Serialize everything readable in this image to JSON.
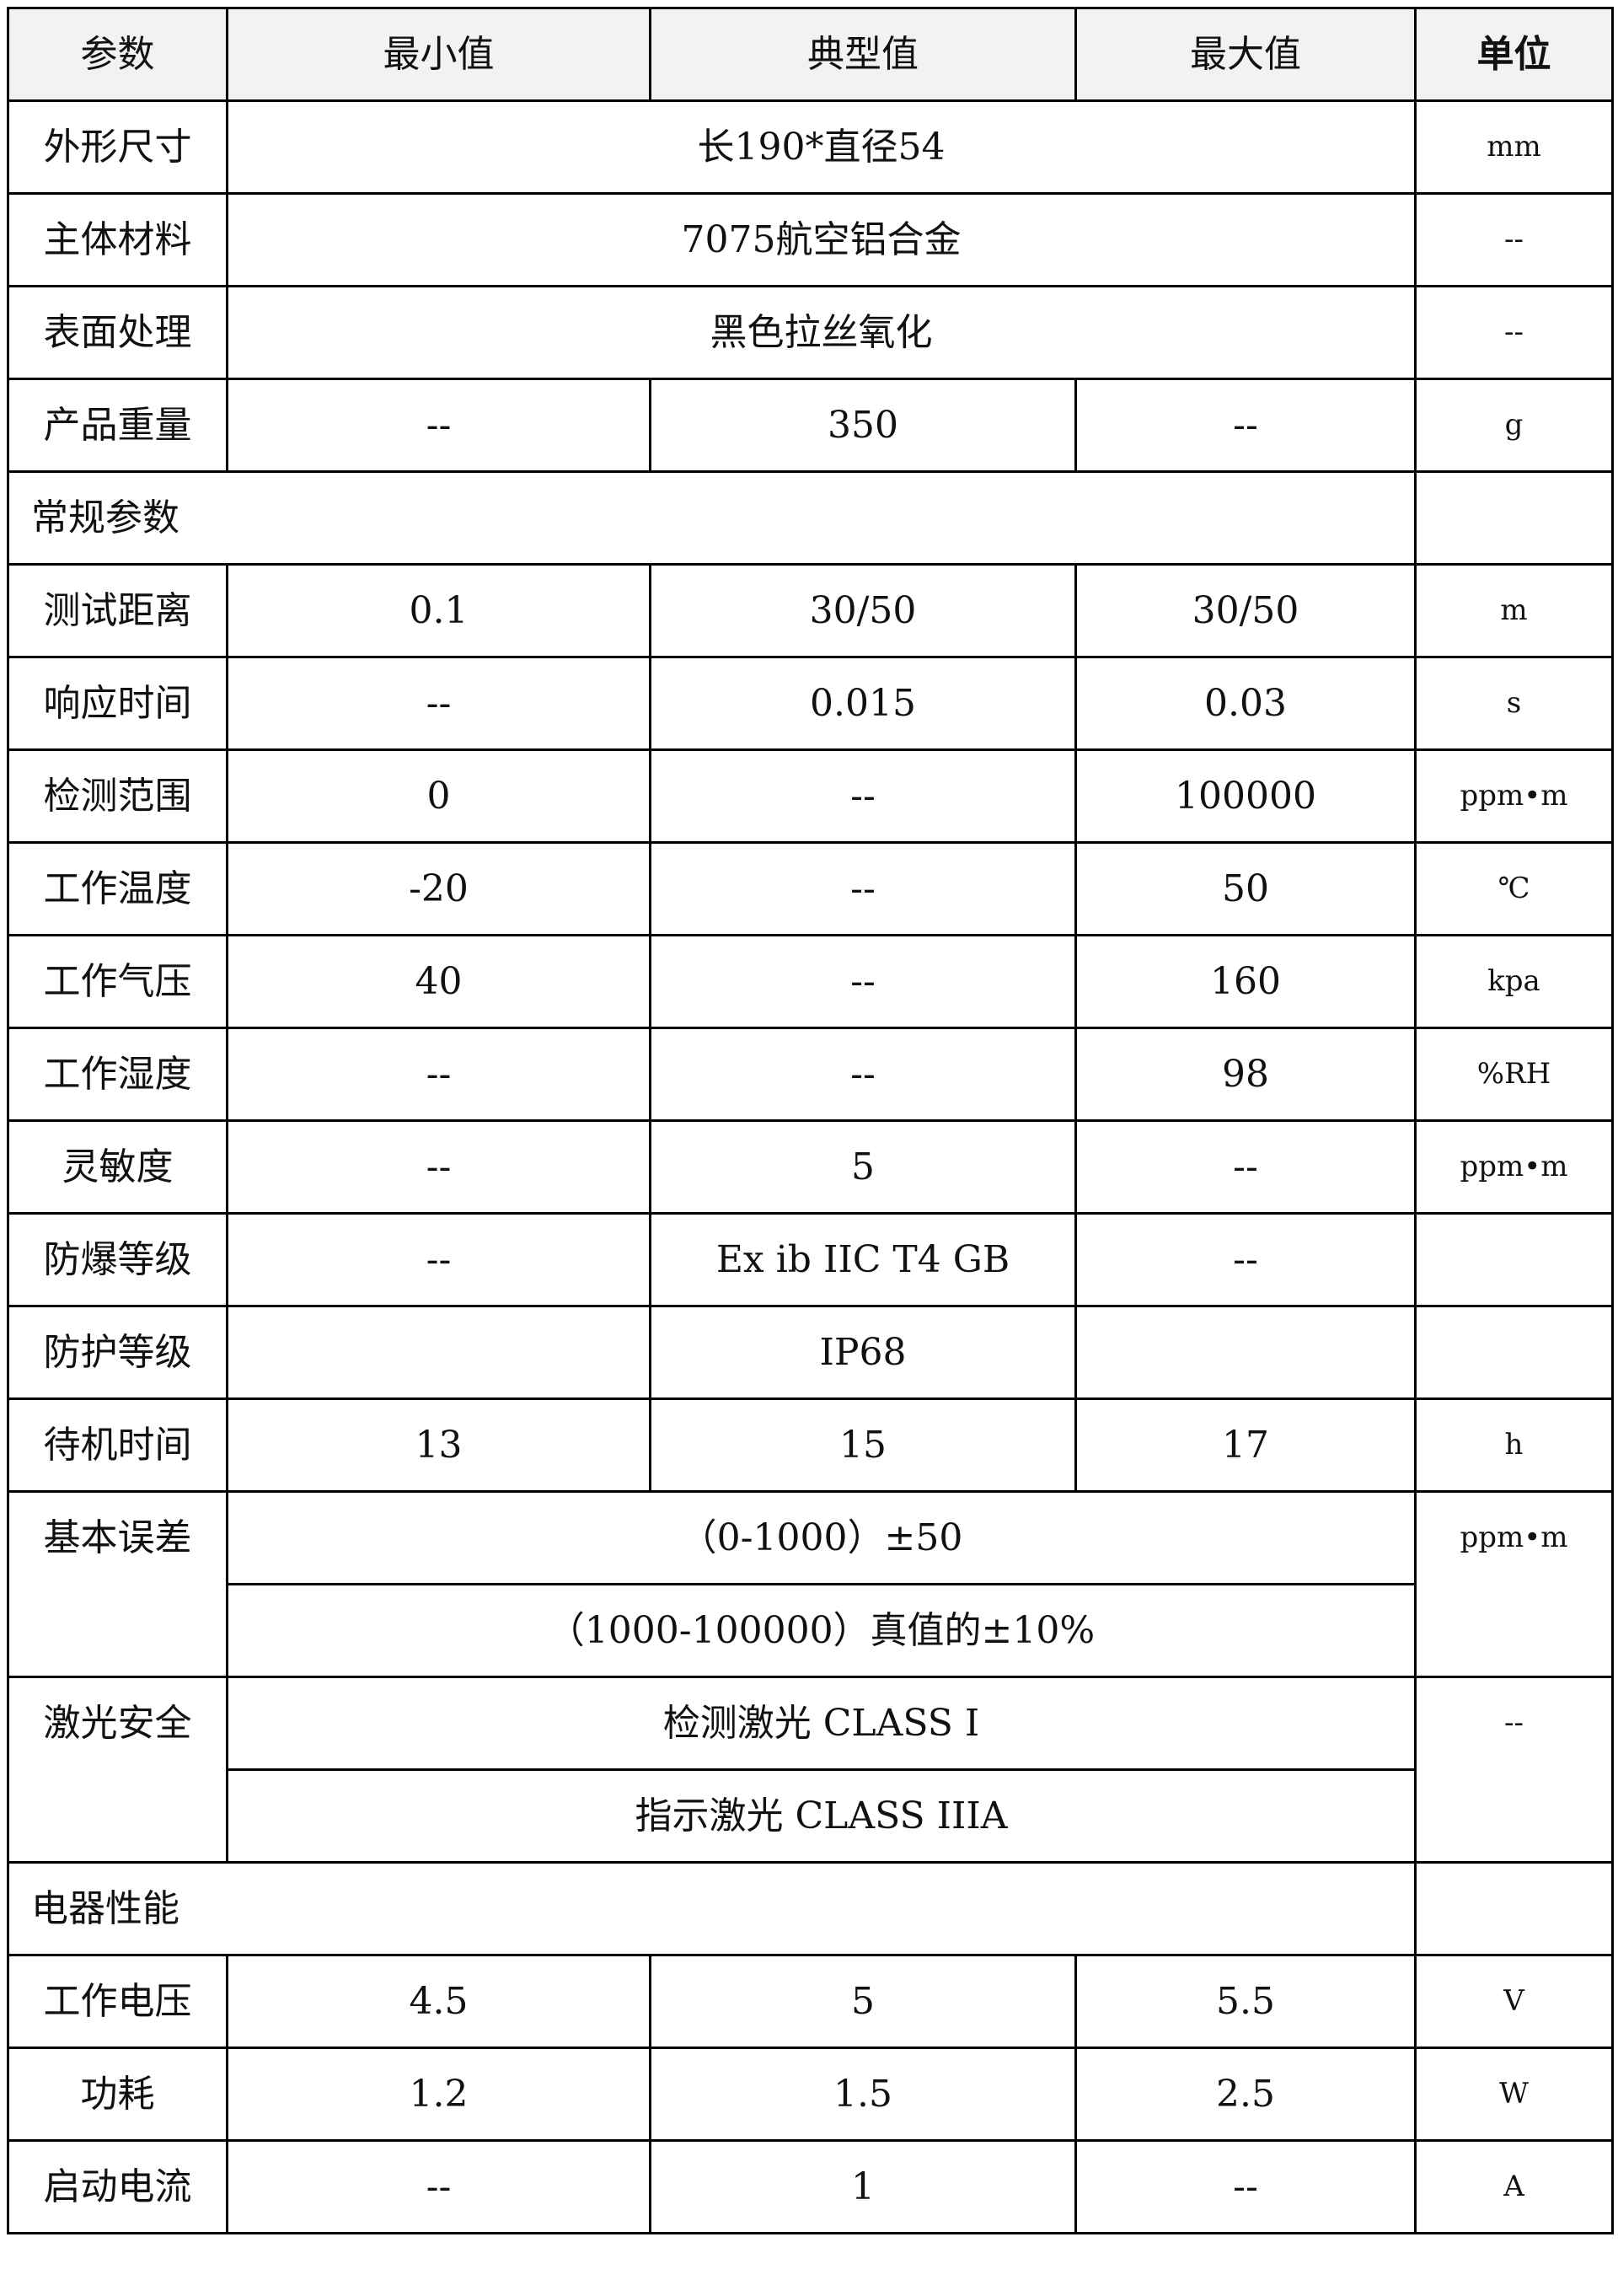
{
  "table": {
    "header": [
      "参数",
      "最小值",
      "典型值",
      "最大值",
      "单位"
    ],
    "rows": [
      [
        "外形尺寸",
        "长190*直径54",
        "mm"
      ],
      [
        "主体材料",
        "7075航空铝合金",
        "--"
      ],
      [
        "表面处理",
        "黑色拉丝氧化",
        "--"
      ],
      [
        "产品重量",
        "--",
        "350",
        "--",
        "g"
      ],
      [
        "常规参数"
      ],
      [
        "测试距离",
        "0.1",
        "30/50",
        "30/50",
        "m"
      ],
      [
        "响应时间",
        "--",
        "0.015",
        "0.03",
        "s"
      ],
      [
        "检测范围",
        "0",
        "--",
        "100000",
        "ppm•m"
      ],
      [
        "工作温度",
        "-20",
        "--",
        "50",
        "℃"
      ],
      [
        "工作气压",
        "40",
        "--",
        "160",
        "kpa"
      ],
      [
        "工作湿度",
        "--",
        "--",
        "98",
        "%RH"
      ],
      [
        "灵敏度",
        "--",
        "5",
        "--",
        "ppm•m"
      ],
      [
        "防爆等级",
        "--",
        "Ex ib IIC T4 GB",
        "--"
      ],
      [
        "防护等级",
        "IP68"
      ],
      [
        "待机时间",
        "13",
        "15",
        "17",
        "h"
      ],
      [
        "基本误差",
        "（0-1000）±50",
        "ppm•m"
      ],
      [
        "（1000-100000）真值的±10%"
      ],
      [
        "激光安全",
        "检测激光 CLASS I",
        "--"
      ],
      [
        "指示激光 CLASS IIIA"
      ],
      [
        "电器性能"
      ],
      [
        "工作电压",
        "4.5",
        "5",
        "5.5",
        "V"
      ],
      [
        "功耗",
        "1.2",
        "1.5",
        "2.5",
        "W"
      ],
      [
        "启动电流",
        "--",
        "1",
        "--",
        "A"
      ]
    ]
  }
}
